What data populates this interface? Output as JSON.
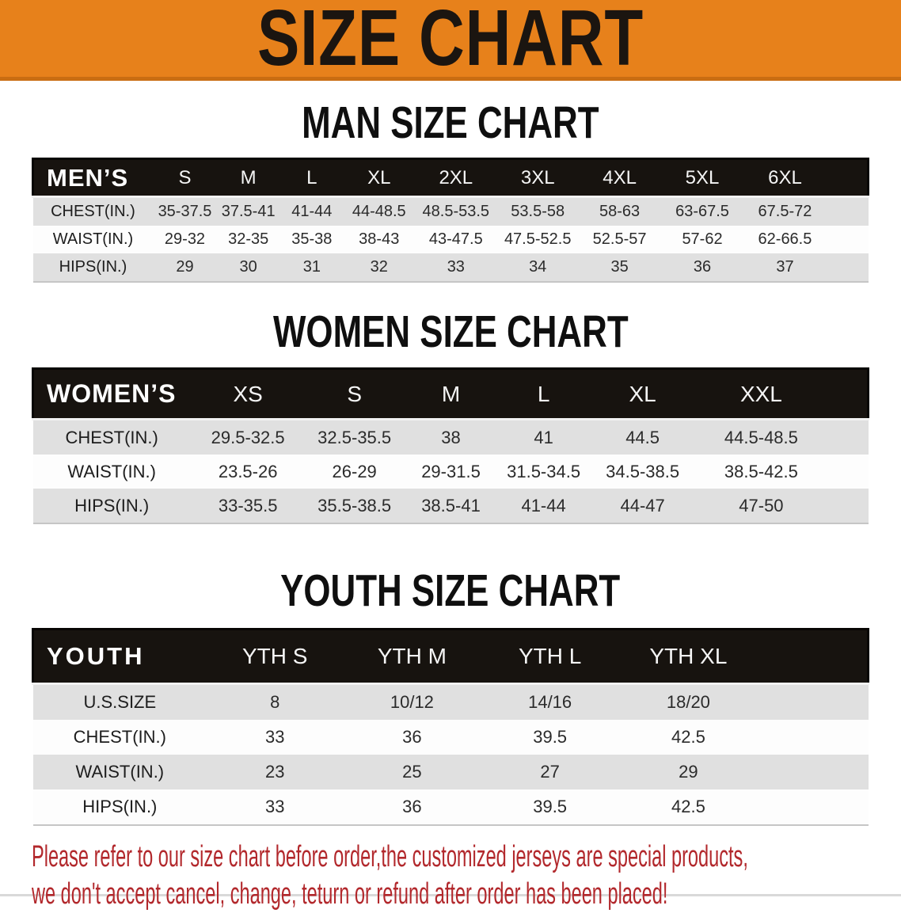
{
  "colors": {
    "banner_bg": "#e7811b",
    "header_bg": "#17130f",
    "row_gray": "#e0e0e0",
    "disclaimer_red": "#b2282c"
  },
  "banner": {
    "title": "SIZE CHART"
  },
  "sections": [
    {
      "id": "men",
      "title": "MAN SIZE CHART",
      "corner_label": "MEN’S",
      "columns": [
        "S",
        "M",
        "L",
        "XL",
        "2XL",
        "3XL",
        "4XL",
        "5XL",
        "6XL"
      ],
      "rows": [
        {
          "label": "CHEST(IN.)",
          "values": [
            "35-37.5",
            "37.5-41",
            "41-44",
            "44-48.5",
            "48.5-53.5",
            "53.5-58",
            "58-63",
            "63-67.5",
            "67.5-72"
          ]
        },
        {
          "label": "WAIST(IN.)",
          "values": [
            "29-32",
            "32-35",
            "35-38",
            "38-43",
            "43-47.5",
            "47.5-52.5",
            "52.5-57",
            "57-62",
            "62-66.5"
          ]
        },
        {
          "label": "HIPS(IN.)",
          "values": [
            "29",
            "30",
            "31",
            "32",
            "33",
            "34",
            "35",
            "36",
            "37"
          ]
        }
      ]
    },
    {
      "id": "women",
      "title": "WOMEN SIZE CHART",
      "corner_label": "WOMEN’S",
      "columns": [
        "XS",
        "S",
        "M",
        "L",
        "XL",
        "XXL"
      ],
      "rows": [
        {
          "label": "CHEST(IN.)",
          "values": [
            "29.5-32.5",
            "32.5-35.5",
            "38",
            "41",
            "44.5",
            "44.5-48.5"
          ]
        },
        {
          "label": "WAIST(IN.)",
          "values": [
            "23.5-26",
            "26-29",
            "29-31.5",
            "31.5-34.5",
            "34.5-38.5",
            "38.5-42.5"
          ]
        },
        {
          "label": "HIPS(IN.)",
          "values": [
            "33-35.5",
            "35.5-38.5",
            "38.5-41",
            "41-44",
            "44-47",
            "47-50"
          ]
        }
      ]
    },
    {
      "id": "youth",
      "title": "YOUTH SIZE CHART",
      "corner_label": "YOUTH",
      "columns": [
        "YTH S",
        "YTH M",
        "YTH L",
        "YTH XL"
      ],
      "rows": [
        {
          "label": "U.S.SIZE",
          "values": [
            "8",
            "10/12",
            "14/16",
            "18/20"
          ]
        },
        {
          "label": "CHEST(IN.)",
          "values": [
            "33",
            "36",
            "39.5",
            "42.5"
          ]
        },
        {
          "label": "WAIST(IN.)",
          "values": [
            "23",
            "25",
            "27",
            "29"
          ]
        },
        {
          "label": "HIPS(IN.)",
          "values": [
            "33",
            "36",
            "39.5",
            "42.5"
          ]
        }
      ]
    }
  ],
  "disclaimer": {
    "line1": "Please refer to our size chart before order,the customized jerseys are special products,",
    "line2": "we don't accept cancel, change, teturn or refund after order has been placed!"
  }
}
